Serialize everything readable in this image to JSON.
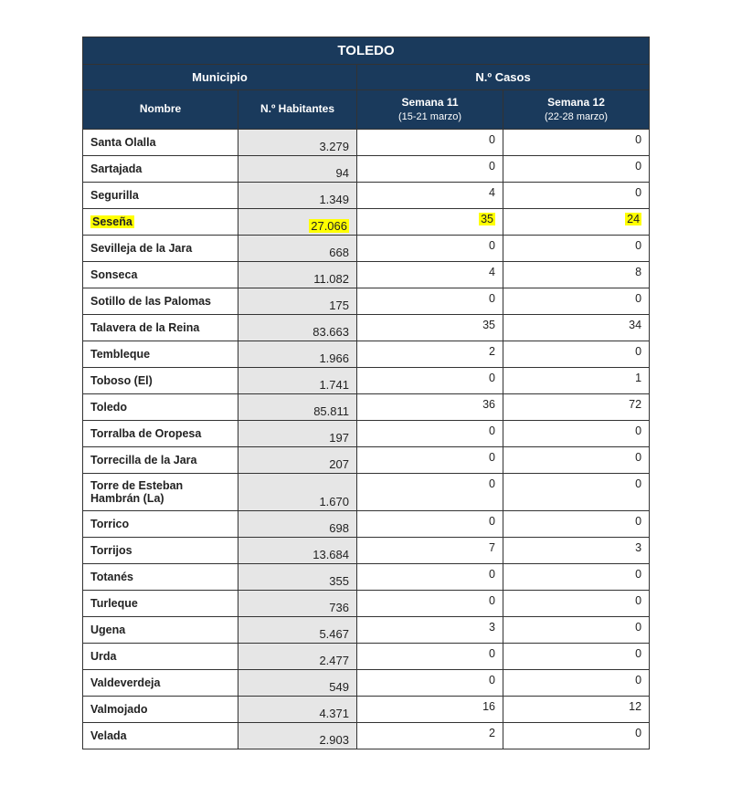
{
  "table": {
    "title": "TOLEDO",
    "group_left": "Municipio",
    "group_right": "N.º Casos",
    "col_nombre": "Nombre",
    "col_hab": "N.º Habitantes",
    "col_s11_top": "Semana 11",
    "col_s11_bot": "(15-21 marzo)",
    "col_s12_top": "Semana 12",
    "col_s12_bot": "(22-28 marzo)",
    "header_bg": "#1a3a5c",
    "header_fg": "#ffffff",
    "hab_bg": "#e6e6e6",
    "highlight_bg": "#ffff00",
    "border_color": "#333333",
    "rows": [
      {
        "nombre": "Santa Olalla",
        "hab": "3.279",
        "s11": "0",
        "s12": "0",
        "hl": false
      },
      {
        "nombre": "Sartajada",
        "hab": "94",
        "s11": "0",
        "s12": "0",
        "hl": false
      },
      {
        "nombre": "Segurilla",
        "hab": "1.349",
        "s11": "4",
        "s12": "0",
        "hl": false
      },
      {
        "nombre": "Seseña",
        "hab": "27.066",
        "s11": "35",
        "s12": "24",
        "hl": true
      },
      {
        "nombre": "Sevilleja de la Jara",
        "hab": "668",
        "s11": "0",
        "s12": "0",
        "hl": false
      },
      {
        "nombre": "Sonseca",
        "hab": "11.082",
        "s11": "4",
        "s12": "8",
        "hl": false
      },
      {
        "nombre": "Sotillo de las Palomas",
        "hab": "175",
        "s11": "0",
        "s12": "0",
        "hl": false
      },
      {
        "nombre": "Talavera de la Reina",
        "hab": "83.663",
        "s11": "35",
        "s12": "34",
        "hl": false
      },
      {
        "nombre": "Tembleque",
        "hab": "1.966",
        "s11": "2",
        "s12": "0",
        "hl": false
      },
      {
        "nombre": "Toboso (El)",
        "hab": "1.741",
        "s11": "0",
        "s12": "1",
        "hl": false
      },
      {
        "nombre": "Toledo",
        "hab": "85.811",
        "s11": "36",
        "s12": "72",
        "hl": false
      },
      {
        "nombre": "Torralba de Oropesa",
        "hab": "197",
        "s11": "0",
        "s12": "0",
        "hl": false
      },
      {
        "nombre": "Torrecilla de la Jara",
        "hab": "207",
        "s11": "0",
        "s12": "0",
        "hl": false
      },
      {
        "nombre": "Torre de Esteban Hambrán (La)",
        "hab": "1.670",
        "s11": "0",
        "s12": "0",
        "hl": false
      },
      {
        "nombre": "Torrico",
        "hab": "698",
        "s11": "0",
        "s12": "0",
        "hl": false
      },
      {
        "nombre": "Torrijos",
        "hab": "13.684",
        "s11": "7",
        "s12": "3",
        "hl": false
      },
      {
        "nombre": "Totanés",
        "hab": "355",
        "s11": "0",
        "s12": "0",
        "hl": false
      },
      {
        "nombre": "Turleque",
        "hab": "736",
        "s11": "0",
        "s12": "0",
        "hl": false
      },
      {
        "nombre": "Ugena",
        "hab": "5.467",
        "s11": "3",
        "s12": "0",
        "hl": false
      },
      {
        "nombre": "Urda",
        "hab": "2.477",
        "s11": "0",
        "s12": "0",
        "hl": false
      },
      {
        "nombre": "Valdeverdeja",
        "hab": "549",
        "s11": "0",
        "s12": "0",
        "hl": false
      },
      {
        "nombre": "Valmojado",
        "hab": "4.371",
        "s11": "16",
        "s12": "12",
        "hl": false
      },
      {
        "nombre": "Velada",
        "hab": "2.903",
        "s11": "2",
        "s12": "0",
        "hl": false
      }
    ]
  }
}
